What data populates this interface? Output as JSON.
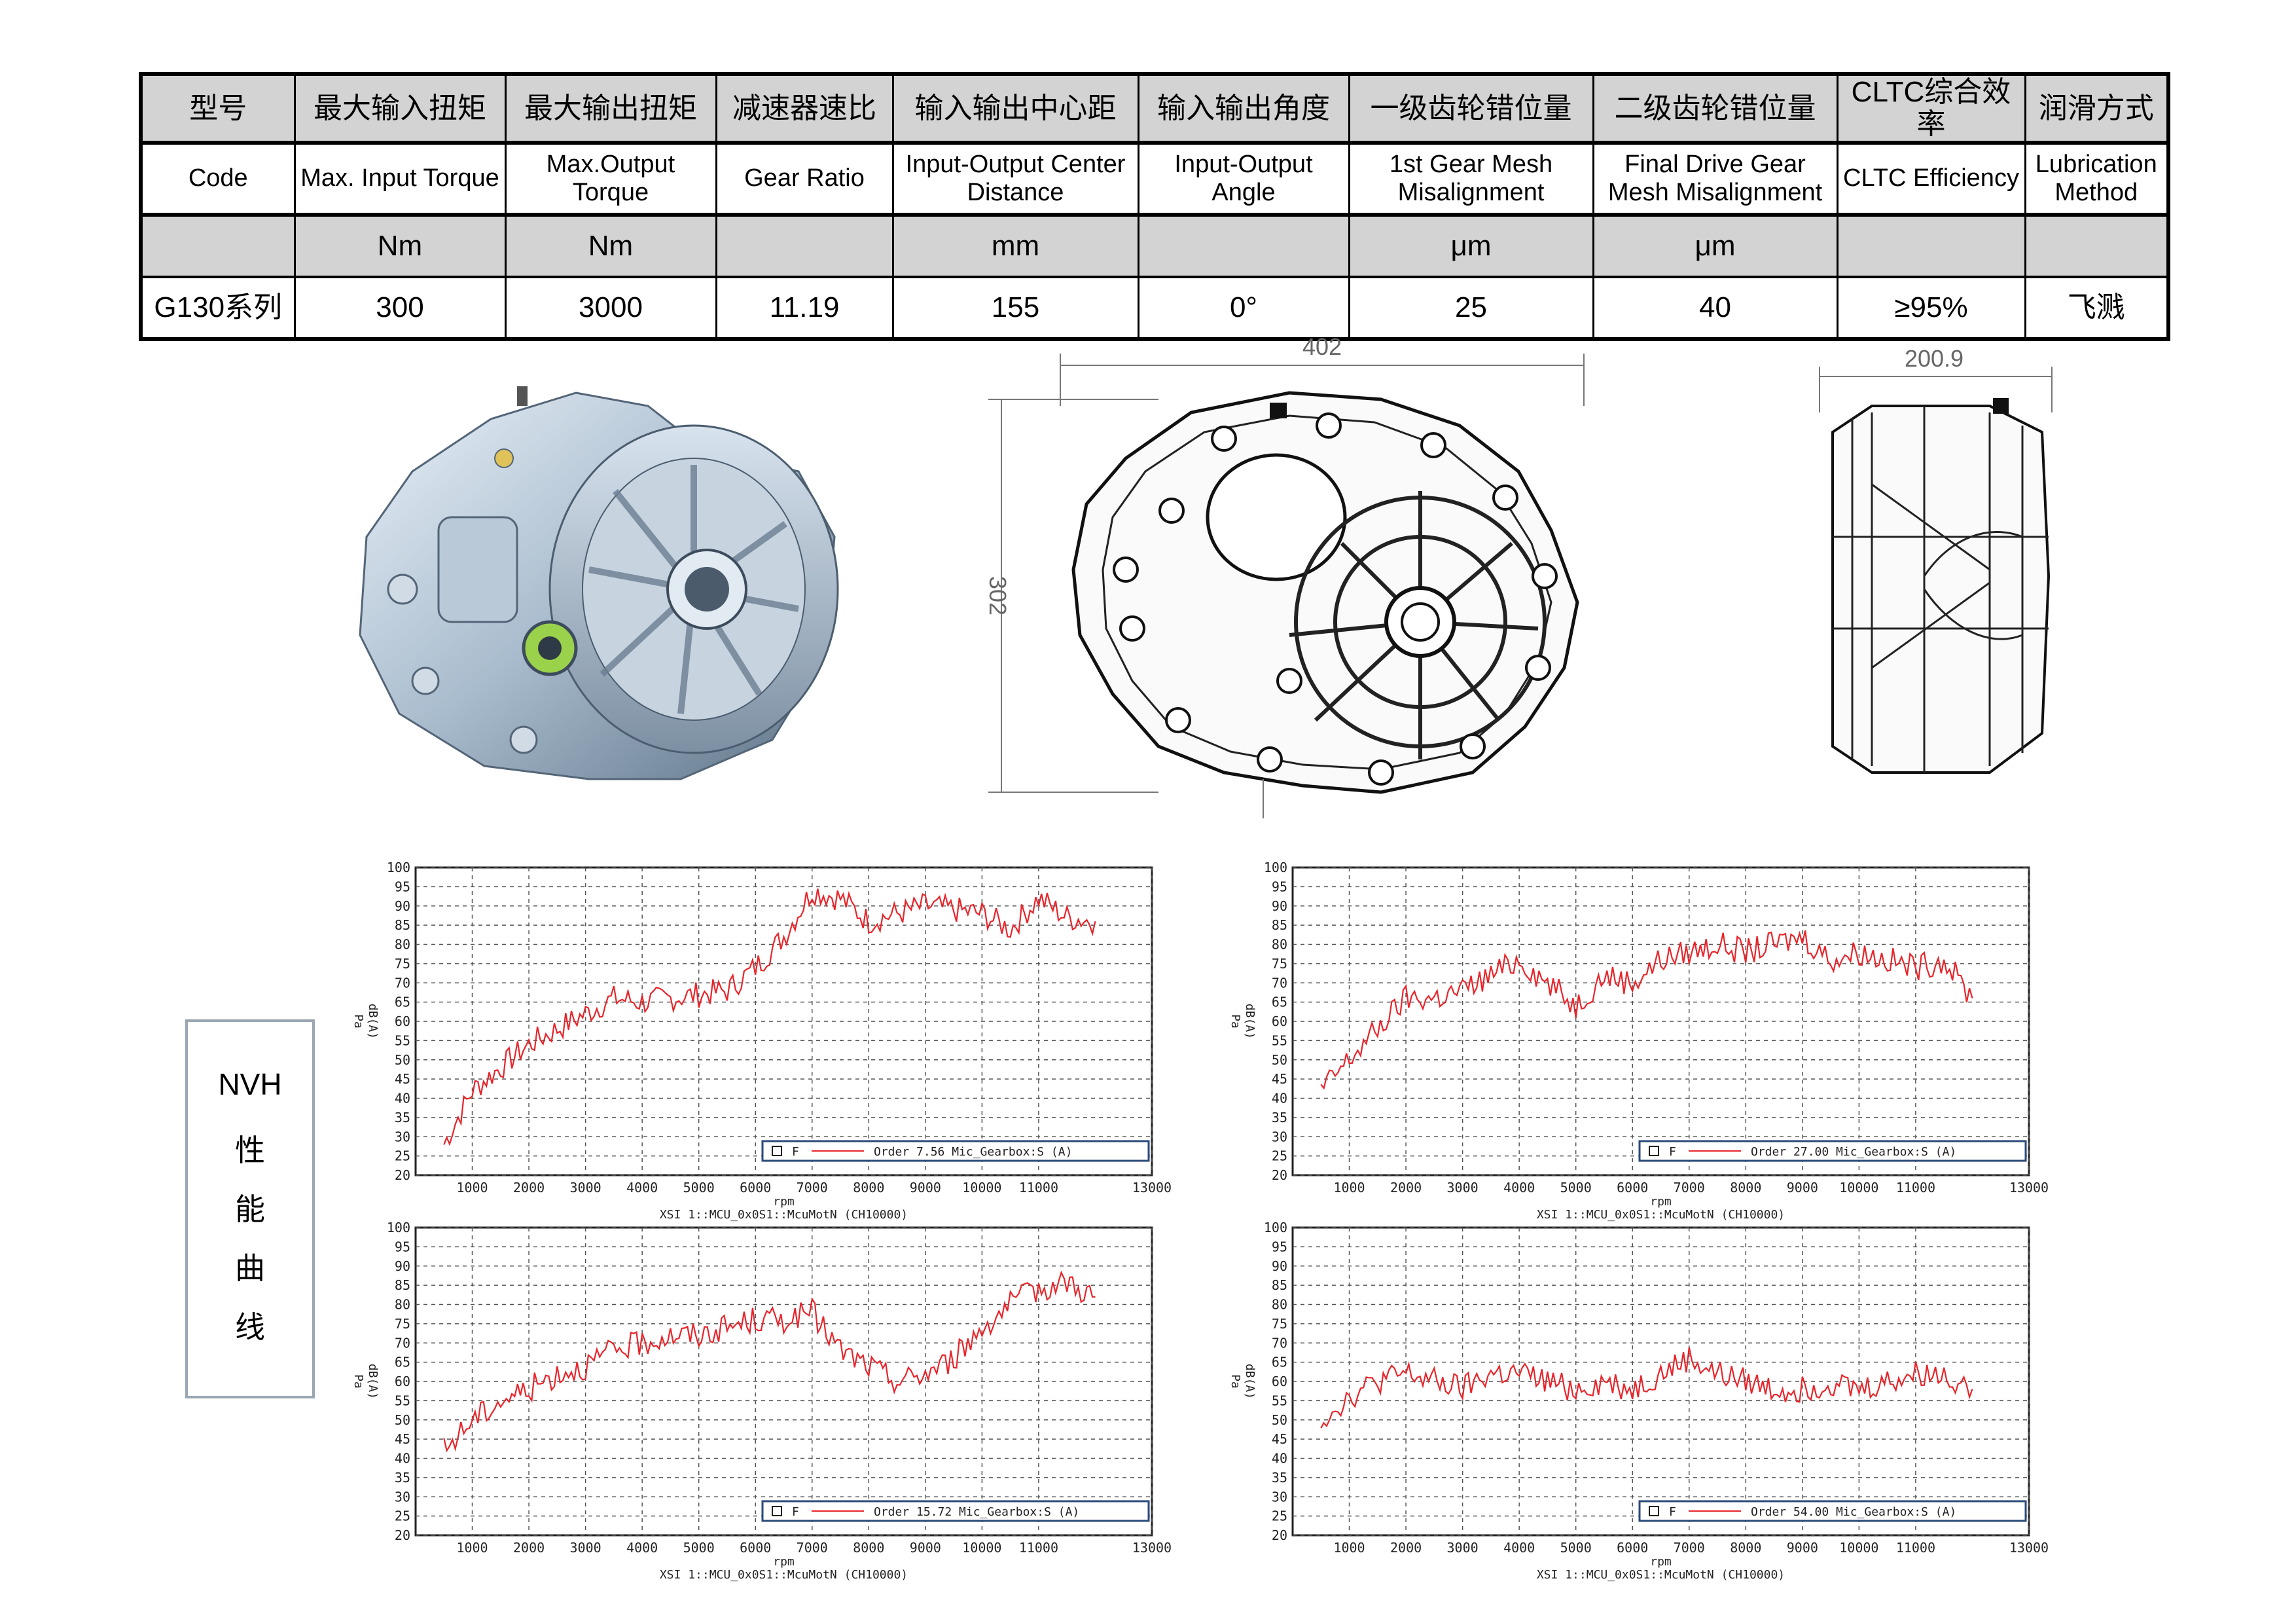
{
  "spec_table": {
    "headers_zh": [
      "型号",
      "最大输入扭矩",
      "最大输出扭矩",
      "减速器速比",
      "输入输出中心距",
      "输入输出角度",
      "一级齿轮错位量",
      "二级齿轮错位量",
      "CLTC综合效率",
      "润滑方式"
    ],
    "headers_en": [
      [
        "Code"
      ],
      [
        "Max. Input Torque"
      ],
      [
        "Max.Output",
        "Torque"
      ],
      [
        "Gear Ratio"
      ],
      [
        "Input-Output Center",
        "Distance"
      ],
      [
        "Input-Output",
        "Angle"
      ],
      [
        "1st Gear Mesh",
        "Misalignment"
      ],
      [
        "Final Drive Gear",
        "Mesh Misalignment"
      ],
      [
        "CLTC Efficiency"
      ],
      [
        "Lubrication",
        "Method"
      ]
    ],
    "units": [
      "",
      "Nm",
      "Nm",
      "",
      "mm",
      "",
      "μm",
      "μm",
      "",
      ""
    ],
    "values": [
      "G130系列",
      "300",
      "3000",
      "11.19",
      "155",
      "0°",
      "25",
      "40",
      "≥95%",
      "飞溅"
    ]
  },
  "drawings": {
    "front_view": {
      "width_dim": "402",
      "height_dim": "302"
    },
    "side_view": {
      "width_dim": "200.9"
    }
  },
  "nvh": {
    "label_lines": [
      "NVH",
      "性",
      "能",
      "曲",
      "线"
    ]
  },
  "chart_data": [
    {
      "type": "line",
      "x_ticks": [
        "1000",
        "2000",
        "3000",
        "4000",
        "5000",
        "6000",
        "7000",
        "8000",
        "9000",
        "10000",
        "11000",
        "13000"
      ],
      "y_ticks": [
        "100",
        "95",
        "90",
        "85",
        "80",
        "75",
        "70",
        "65",
        "60",
        "55",
        "50",
        "45",
        "40",
        "35",
        "30",
        "25",
        "20"
      ],
      "xlabel": "rpm",
      "xsub": "XSI 1::MCU_0x0S1::McuMotN (CH10000)",
      "ylabel": "Pa",
      "ylabel2": "dB(A)",
      "xlim": [
        0,
        13000
      ],
      "ylim": [
        20,
        100
      ],
      "grid": true,
      "legend_position": "bottom-right",
      "legend_key": "F",
      "legend_text": "Order 7.56 Mic_Gearbox:S (A)",
      "line_color": "#e8252b",
      "x": [
        500,
        1000,
        1500,
        2000,
        2500,
        3000,
        3500,
        4000,
        4500,
        5000,
        5500,
        6000,
        6500,
        7000,
        7500,
        8000,
        8500,
        9000,
        9500,
        10000,
        10500,
        11000,
        11500,
        12000
      ],
      "y": [
        28,
        42,
        48,
        54,
        58,
        62,
        66,
        65,
        66,
        67,
        68,
        74,
        82,
        94,
        92,
        86,
        88,
        90,
        89,
        88,
        84,
        92,
        87,
        86
      ]
    },
    {
      "type": "line",
      "x_ticks": [
        "1000",
        "2000",
        "3000",
        "4000",
        "5000",
        "6000",
        "7000",
        "8000",
        "9000",
        "10000",
        "11000",
        "13000"
      ],
      "y_ticks": [
        "100",
        "95",
        "90",
        "85",
        "80",
        "75",
        "70",
        "65",
        "60",
        "55",
        "50",
        "45",
        "40",
        "35",
        "30",
        "25",
        "20"
      ],
      "xlabel": "rpm",
      "xsub": "XSI 1::MCU_0x0S1::McuMotN (CH10000)",
      "ylabel": "Pa",
      "ylabel2": "dB(A)",
      "xlim": [
        0,
        13000
      ],
      "ylim": [
        20,
        100
      ],
      "grid": true,
      "legend_position": "bottom-right",
      "legend_key": "F",
      "legend_text": "Order 27.00 Mic_Gearbox:S (A)",
      "line_color": "#e8252b",
      "x": [
        500,
        1000,
        1500,
        2000,
        2500,
        3000,
        3500,
        4000,
        4500,
        5000,
        5500,
        6000,
        6500,
        7000,
        7500,
        8000,
        8500,
        9000,
        9500,
        10000,
        10500,
        11000,
        11500,
        12000
      ],
      "y": [
        42,
        50,
        58,
        66,
        66,
        68,
        72,
        76,
        70,
        64,
        72,
        70,
        76,
        78,
        80,
        78,
        80,
        82,
        76,
        78,
        76,
        74,
        76,
        66
      ]
    },
    {
      "type": "line",
      "x_ticks": [
        "1000",
        "2000",
        "3000",
        "4000",
        "5000",
        "6000",
        "7000",
        "8000",
        "9000",
        "10000",
        "11000",
        "13000"
      ],
      "y_ticks": [
        "100",
        "95",
        "90",
        "85",
        "80",
        "75",
        "70",
        "65",
        "60",
        "55",
        "50",
        "45",
        "40",
        "35",
        "30",
        "25",
        "20"
      ],
      "xlabel": "rpm",
      "xsub": "XSI 1::MCU_0x0S1::McuMotN (CH10000)",
      "ylabel": "Pa",
      "ylabel2": "dB(A)",
      "xlim": [
        0,
        13000
      ],
      "ylim": [
        20,
        100
      ],
      "grid": true,
      "legend_position": "bottom-right",
      "legend_key": "F",
      "legend_text": "Order 15.72 Mic_Gearbox:S (A)",
      "line_color": "#e8252b",
      "x": [
        500,
        1000,
        1500,
        2000,
        2500,
        3000,
        3500,
        4000,
        4500,
        5000,
        5500,
        6000,
        6500,
        7000,
        7500,
        8000,
        8500,
        9000,
        9500,
        10000,
        10500,
        11000,
        11500,
        12000
      ],
      "y": [
        42,
        50,
        55,
        58,
        62,
        64,
        68,
        70,
        72,
        72,
        74,
        76,
        76,
        78,
        68,
        64,
        60,
        62,
        66,
        74,
        80,
        84,
        86,
        82
      ]
    },
    {
      "type": "line",
      "x_ticks": [
        "1000",
        "2000",
        "3000",
        "4000",
        "5000",
        "6000",
        "7000",
        "8000",
        "9000",
        "10000",
        "11000",
        "13000"
      ],
      "y_ticks": [
        "100",
        "95",
        "90",
        "85",
        "80",
        "75",
        "70",
        "65",
        "60",
        "55",
        "50",
        "45",
        "40",
        "35",
        "30",
        "25",
        "20"
      ],
      "xlabel": "rpm",
      "xsub": "XSI 1::MCU_0x0S1::McuMotN (CH10000)",
      "ylabel": "Pa",
      "ylabel2": "dB(A)",
      "xlim": [
        0,
        13000
      ],
      "ylim": [
        20,
        100
      ],
      "grid": true,
      "legend_position": "bottom-right",
      "legend_key": "F",
      "legend_text": "Order 54.00 Mic_Gearbox:S (A)",
      "line_color": "#e8252b",
      "x": [
        500,
        1000,
        1500,
        2000,
        2500,
        3000,
        3500,
        4000,
        4500,
        5000,
        5500,
        6000,
        6500,
        7000,
        7500,
        8000,
        8500,
        9000,
        9500,
        10000,
        10500,
        11000,
        11500,
        12000
      ],
      "y": [
        50,
        56,
        60,
        62,
        60,
        58,
        62,
        62,
        60,
        58,
        60,
        58,
        62,
        66,
        62,
        60,
        58,
        58,
        60,
        58,
        60,
        62,
        62,
        58
      ]
    }
  ]
}
